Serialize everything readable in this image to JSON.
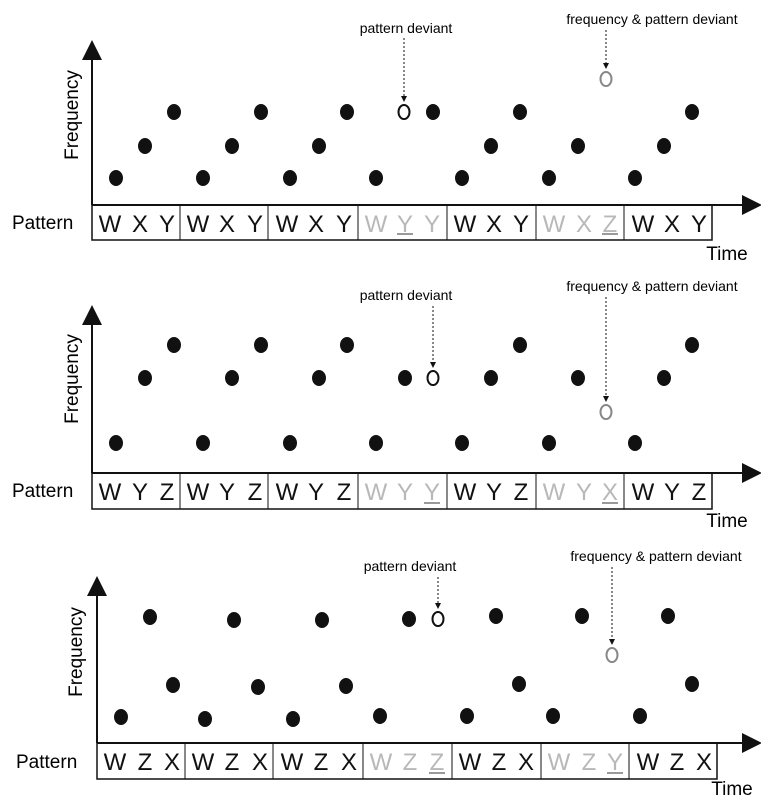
{
  "panels": [
    {
      "y_label": "Frequency",
      "row_label": "Pattern",
      "x_label": "Time",
      "annotations": [
        "pattern deviant",
        "frequency & pattern deviant"
      ],
      "groups": [
        {
          "letters": [
            "W",
            "X",
            "Y"
          ],
          "style": "normal"
        },
        {
          "letters": [
            "W",
            "X",
            "Y"
          ],
          "style": "normal"
        },
        {
          "letters": [
            "W",
            "X",
            "Y"
          ],
          "style": "normal"
        },
        {
          "letters": [
            "W",
            "Y",
            "Y"
          ],
          "style": "deviant",
          "underline_index": 1
        },
        {
          "letters": [
            "W",
            "X",
            "Y"
          ],
          "style": "normal"
        },
        {
          "letters": [
            "W",
            "X",
            "Z"
          ],
          "style": "deviant",
          "underline_index": 2
        },
        {
          "letters": [
            "W",
            "X",
            "Y"
          ],
          "style": "normal"
        }
      ]
    },
    {
      "y_label": "Frequency",
      "row_label": "Pattern",
      "x_label": "Time",
      "annotations": [
        "pattern deviant",
        "frequency & pattern deviant"
      ],
      "groups": [
        {
          "letters": [
            "W",
            "Y",
            "Z"
          ],
          "style": "normal"
        },
        {
          "letters": [
            "W",
            "Y",
            "Z"
          ],
          "style": "normal"
        },
        {
          "letters": [
            "W",
            "Y",
            "Z"
          ],
          "style": "normal"
        },
        {
          "letters": [
            "W",
            "Y",
            "Y"
          ],
          "style": "deviant",
          "underline_index": 2
        },
        {
          "letters": [
            "W",
            "Y",
            "Z"
          ],
          "style": "normal"
        },
        {
          "letters": [
            "W",
            "Y",
            "X"
          ],
          "style": "deviant",
          "underline_index": 2
        },
        {
          "letters": [
            "W",
            "Y",
            "Z"
          ],
          "style": "normal"
        }
      ]
    },
    {
      "y_label": "Frequency",
      "row_label": "Pattern",
      "x_label": "Time",
      "annotations": [
        "pattern deviant",
        "frequency & pattern deviant"
      ],
      "groups": [
        {
          "letters": [
            "W",
            "Z",
            "X"
          ],
          "style": "normal"
        },
        {
          "letters": [
            "W",
            "Z",
            "X"
          ],
          "style": "normal"
        },
        {
          "letters": [
            "W",
            "Z",
            "X"
          ],
          "style": "normal"
        },
        {
          "letters": [
            "W",
            "Z",
            "Z"
          ],
          "style": "deviant",
          "underline_index": 2
        },
        {
          "letters": [
            "W",
            "Z",
            "X"
          ],
          "style": "normal"
        },
        {
          "letters": [
            "W",
            "Z",
            "Y"
          ],
          "style": "deviant",
          "underline_index": 2
        },
        {
          "letters": [
            "W",
            "Z",
            "X"
          ],
          "style": "normal"
        }
      ]
    }
  ],
  "colors": {
    "ink": "#111111",
    "deviant_text": "#b8b8b8",
    "underline": "#9a9a9a",
    "hollow_gray": "#888888"
  }
}
